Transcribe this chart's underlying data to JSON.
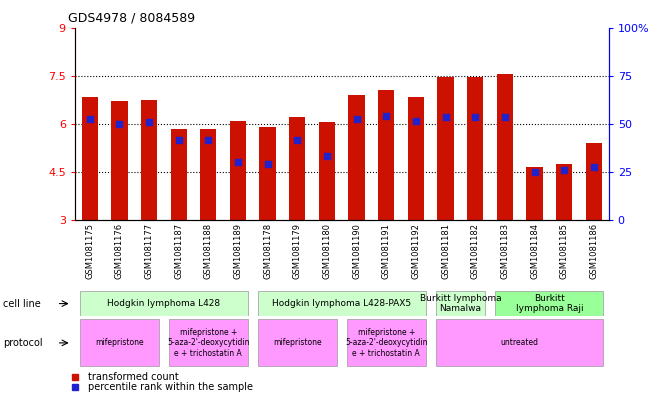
{
  "title": "GDS4978 / 8084589",
  "samples": [
    "GSM1081175",
    "GSM1081176",
    "GSM1081177",
    "GSM1081187",
    "GSM1081188",
    "GSM1081189",
    "GSM1081178",
    "GSM1081179",
    "GSM1081180",
    "GSM1081190",
    "GSM1081191",
    "GSM1081192",
    "GSM1081181",
    "GSM1081182",
    "GSM1081183",
    "GSM1081184",
    "GSM1081185",
    "GSM1081186"
  ],
  "bar_heights": [
    6.85,
    6.7,
    6.75,
    5.85,
    5.85,
    6.1,
    5.9,
    6.2,
    6.05,
    6.9,
    7.05,
    6.85,
    7.45,
    7.45,
    7.55,
    4.65,
    4.75,
    5.4
  ],
  "blue_positions": [
    6.15,
    6.0,
    6.05,
    5.5,
    5.5,
    4.8,
    4.75,
    5.5,
    5.0,
    6.15,
    6.25,
    6.1,
    6.2,
    6.2,
    6.2,
    4.5,
    4.55,
    4.65
  ],
  "bar_color": "#cc1100",
  "blue_color": "#2222cc",
  "ymin": 3,
  "ymax": 9,
  "yticks": [
    3,
    4.5,
    6,
    7.5,
    9
  ],
  "ytick_labels": [
    "3",
    "4.5",
    "6",
    "7.5",
    "9"
  ],
  "y2min": 0,
  "y2max": 100,
  "y2ticks": [
    0,
    25,
    50,
    75,
    100
  ],
  "y2tick_labels": [
    "0",
    "25",
    "50",
    "75",
    "100%"
  ],
  "dotted_lines": [
    4.5,
    6.0,
    7.5
  ],
  "cell_line_groups": [
    {
      "label": "Hodgkin lymphoma L428",
      "start": 0,
      "end": 5,
      "color": "#ccffcc"
    },
    {
      "label": "Hodgkin lymphoma L428-PAX5",
      "start": 6,
      "end": 11,
      "color": "#ccffcc"
    },
    {
      "label": "Burkitt lymphoma\nNamalwa",
      "start": 12,
      "end": 13,
      "color": "#ccffcc"
    },
    {
      "label": "Burkitt\nlymphoma Raji",
      "start": 14,
      "end": 17,
      "color": "#99ff99"
    }
  ],
  "protocol_groups": [
    {
      "label": "mifepristone",
      "start": 0,
      "end": 2,
      "color": "#ff99ff"
    },
    {
      "label": "mifepristone +\n5-aza-2'-deoxycytidin\ne + trichostatin A",
      "start": 3,
      "end": 5,
      "color": "#ff99ff"
    },
    {
      "label": "mifepristone",
      "start": 6,
      "end": 8,
      "color": "#ff99ff"
    },
    {
      "label": "mifepristone +\n5-aza-2'-deoxycytidin\ne + trichostatin A",
      "start": 9,
      "end": 11,
      "color": "#ff99ff"
    },
    {
      "label": "untreated",
      "start": 12,
      "end": 17,
      "color": "#ff99ff"
    }
  ],
  "bar_width": 0.55
}
